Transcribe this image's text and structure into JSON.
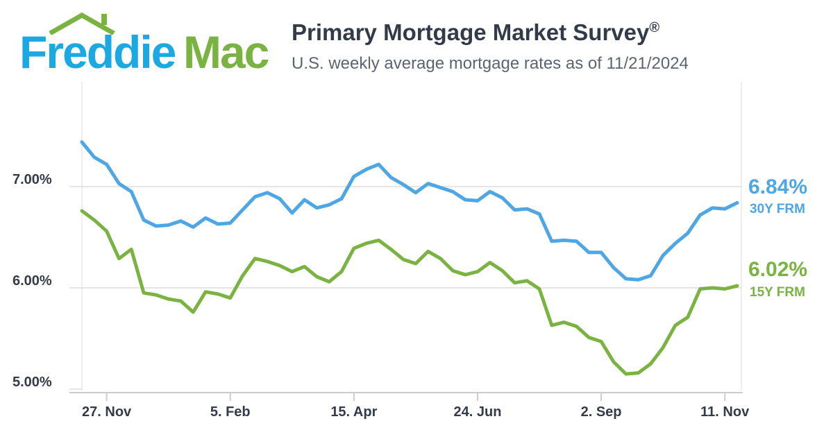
{
  "brand": {
    "name_part1": "Freddie",
    "name_part2": "Mac"
  },
  "header": {
    "title": "Primary Mortgage Market Survey",
    "title_mark": "®",
    "subtitle": "U.S. weekly average mortgage rates as of 11/21/2024"
  },
  "colors": {
    "fixed30": "#4ea6e4",
    "fixed15": "#7ab342",
    "grid": "#dddddd",
    "axis_text": "#333b48"
  },
  "chart_data": {
    "type": "line",
    "title": "Primary Mortgage Market Survey",
    "subtitle": "U.S. weekly average mortgage rates as of 11/21/2024",
    "x_tick_labels": [
      "27. Nov",
      "5. Feb",
      "15. Apr",
      "24. Jun",
      "2. Sep",
      "11. Nov"
    ],
    "y_tick_labels": [
      "5.00%",
      "6.00%",
      "7.00%"
    ],
    "y_ticks": [
      5,
      6,
      7
    ],
    "ylim": [
      4.9,
      8.0
    ],
    "grid": "horizontal",
    "x_week_count": 53,
    "x_tick_week_index": [
      2,
      12,
      22,
      32,
      42,
      52
    ],
    "series": [
      {
        "name": "30Y FRM",
        "end_label": "6.84%",
        "values": [
          7.44,
          7.29,
          7.22,
          7.03,
          6.95,
          6.67,
          6.61,
          6.62,
          6.66,
          6.6,
          6.69,
          6.63,
          6.64,
          6.77,
          6.9,
          6.94,
          6.88,
          6.74,
          6.87,
          6.79,
          6.82,
          6.88,
          7.1,
          7.17,
          7.22,
          7.09,
          7.02,
          6.94,
          7.03,
          6.99,
          6.95,
          6.87,
          6.86,
          6.95,
          6.89,
          6.77,
          6.78,
          6.73,
          6.46,
          6.47,
          6.46,
          6.35,
          6.35,
          6.2,
          6.09,
          6.08,
          6.12,
          6.32,
          6.44,
          6.54,
          6.72,
          6.79,
          6.78,
          6.84
        ]
      },
      {
        "name": "15Y FRM",
        "end_label": "6.02%",
        "values": [
          6.76,
          6.67,
          6.56,
          6.29,
          6.38,
          5.95,
          5.93,
          5.89,
          5.87,
          5.76,
          5.96,
          5.94,
          5.9,
          6.12,
          6.29,
          6.26,
          6.22,
          6.16,
          6.21,
          6.11,
          6.06,
          6.16,
          6.39,
          6.44,
          6.47,
          6.38,
          6.28,
          6.24,
          6.36,
          6.29,
          6.17,
          6.13,
          6.16,
          6.25,
          6.17,
          6.05,
          6.07,
          5.99,
          5.63,
          5.66,
          5.62,
          5.51,
          5.47,
          5.27,
          5.15,
          5.16,
          5.25,
          5.41,
          5.63,
          5.71,
          5.99,
          6.0,
          5.99,
          6.02
        ]
      }
    ]
  }
}
